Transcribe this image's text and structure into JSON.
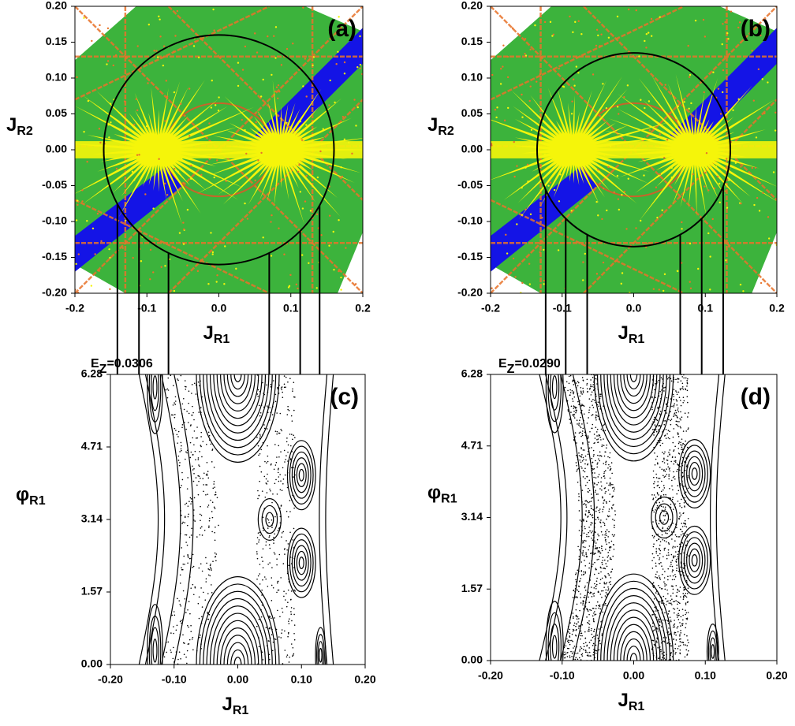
{
  "chart_data": [
    {
      "type": "map",
      "panel_label": "(a)",
      "xlim": [
        -0.2,
        0.2
      ],
      "ylim": [
        -0.2,
        0.2
      ],
      "xticks": [
        -0.2,
        -0.1,
        {
          "value": 0,
          "label": "0.0"
        },
        0.1,
        0.2
      ],
      "yticks": [
        {
          "value": 0.2,
          "label": "0.20"
        },
        0.15,
        {
          "value": 0.1,
          "label": "0.10"
        },
        0.05,
        {
          "value": 0,
          "label": "0.00"
        },
        -0.05,
        {
          "value": -0.1,
          "label": "-0.10"
        },
        -0.15,
        {
          "value": -0.2,
          "label": "-0.20"
        }
      ],
      "x_label": "J",
      "x_label_sub": "R1",
      "y_label": "J",
      "y_label_sub": "R2",
      "circle_radius": 0.16,
      "connector_x": [
        -0.141,
        -0.111,
        -0.07,
        0.07,
        0.113,
        0.14
      ]
    },
    {
      "type": "map",
      "panel_label": "(b)",
      "xlim": [
        -0.2,
        0.2
      ],
      "ylim": [
        -0.2,
        0.2
      ],
      "xticks": [
        -0.2,
        -0.1,
        {
          "value": 0,
          "label": "0.0"
        },
        0.1,
        0.2
      ],
      "yticks": [
        {
          "value": 0.2,
          "label": "0.20"
        },
        0.15,
        {
          "value": 0.1,
          "label": "0.10"
        },
        0.05,
        {
          "value": 0,
          "label": "0.00"
        },
        -0.05,
        {
          "value": -0.1,
          "label": "-0.10"
        },
        -0.15,
        {
          "value": -0.2,
          "label": "-0.20"
        }
      ],
      "x_label": "J",
      "x_label_sub": "R1",
      "y_label": "J",
      "y_label_sub": "R2",
      "circle_radius": 0.135,
      "connector_x": [
        -0.123,
        -0.095,
        -0.065,
        0.065,
        0.095,
        0.125
      ]
    },
    {
      "type": "poincare",
      "panel_label": "(c)",
      "energy_label": "E",
      "energy_sub": "Z",
      "energy_value": "=0.0306",
      "xlim": [
        -0.2,
        0.2
      ],
      "ylim": [
        0,
        6.28
      ],
      "xticks": [
        {
          "value": -0.2,
          "label": "-0.20"
        },
        {
          "value": -0.1,
          "label": "-0.10"
        },
        {
          "value": 0,
          "label": "0.00"
        },
        {
          "value": 0.1,
          "label": "0.10"
        },
        {
          "value": 0.2,
          "label": "0.20"
        }
      ],
      "yticks": [
        {
          "value": 0,
          "label": "0.00"
        },
        1.57,
        3.14,
        4.71,
        6.28
      ],
      "x_label": "J",
      "x_label_sub": "R1",
      "y_label": "φ",
      "y_label_sub": "R1"
    },
    {
      "type": "poincare",
      "panel_label": "(d)",
      "energy_label": "E",
      "energy_sub": "Z",
      "energy_value": "=0.0290",
      "xlim": [
        -0.2,
        0.2
      ],
      "ylim": [
        0,
        6.28
      ],
      "xticks": [
        {
          "value": -0.2,
          "label": "-0.20"
        },
        {
          "value": -0.1,
          "label": "-0.10"
        },
        {
          "value": 0,
          "label": "0.00"
        },
        {
          "value": 0.1,
          "label": "0.10"
        },
        {
          "value": 0.2,
          "label": "0.20"
        }
      ],
      "yticks": [
        {
          "value": 0,
          "label": "0.00"
        },
        1.57,
        3.14,
        4.71,
        6.28
      ],
      "x_label": "J",
      "x_label_sub": "R1",
      "y_label": "φ",
      "y_label_sub": "R1"
    }
  ]
}
